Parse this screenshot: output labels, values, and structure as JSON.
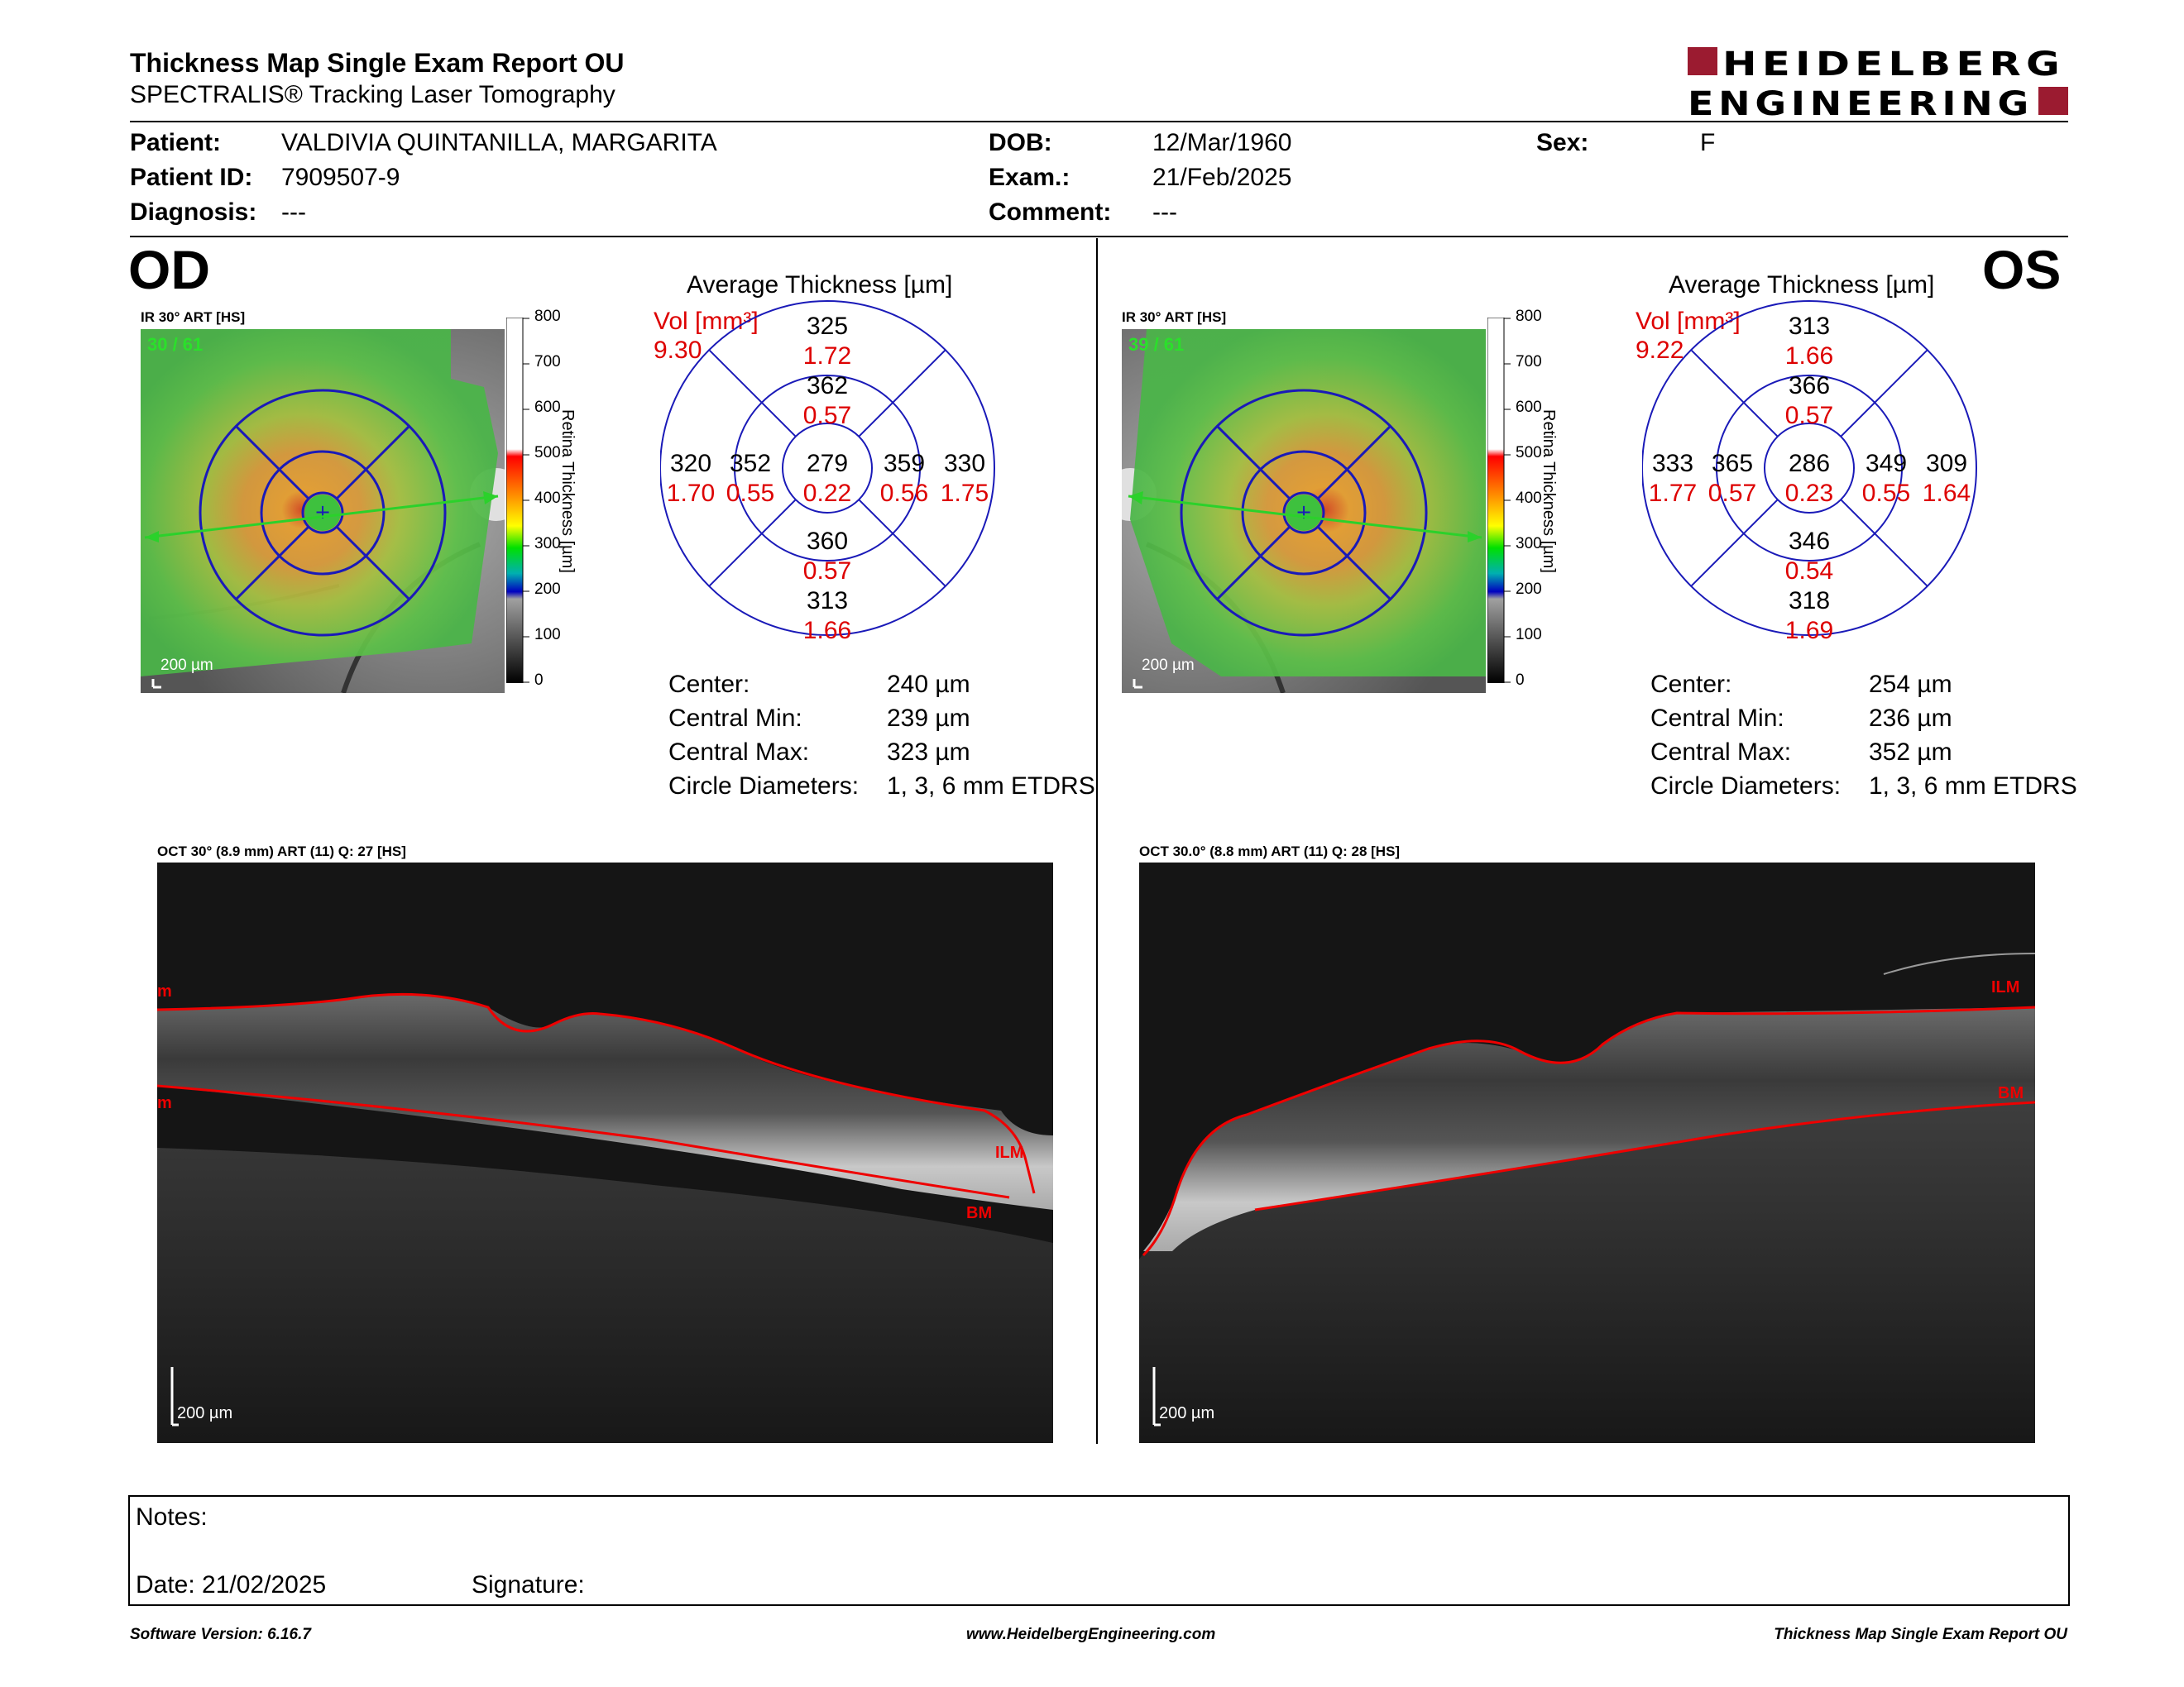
{
  "report": {
    "title": "Thickness Map Single Exam Report OU",
    "subtitle": "SPECTRALIS® Tracking Laser Tomography",
    "logo_line1": "HEIDELBERG",
    "logo_line2": "ENGINEERING",
    "brand_color": "#9b1b30"
  },
  "patient": {
    "patient_label": "Patient:",
    "patient_value": "VALDIVIA QUINTANILLA, MARGARITA",
    "id_label": "Patient ID:",
    "id_value": "7909507-9",
    "diag_label": "Diagnosis:",
    "diag_value": "---",
    "dob_label": "DOB:",
    "dob_value": "12/Mar/1960",
    "exam_label": "Exam.:",
    "exam_value": "21/Feb/2025",
    "comment_label": "Comment:",
    "comment_value": "---",
    "sex_label": "Sex:",
    "sex_value": "F"
  },
  "od": {
    "eye_label": "OD",
    "ir_label": "IR 30° ART [HS]",
    "frames": "30 / 61",
    "scale_bar": "200 µm",
    "avg_title": "Average Thickness [µm]",
    "vol_label": "Vol [mm³]",
    "vol_total": "9.30",
    "sectors": {
      "outer_top": [
        "325",
        "1.72"
      ],
      "inner_top": [
        "362",
        "0.57"
      ],
      "outer_left": [
        "320",
        "1.70"
      ],
      "inner_left": [
        "352",
        "0.55"
      ],
      "center": [
        "279",
        "0.22"
      ],
      "inner_right": [
        "359",
        "0.56"
      ],
      "outer_right": [
        "330",
        "1.75"
      ],
      "inner_bottom": [
        "360",
        "0.57"
      ],
      "outer_bottom": [
        "313",
        "1.66"
      ]
    },
    "stats": {
      "center_label": "Center:",
      "center_value": "240 µm",
      "min_label": "Central Min:",
      "min_value": "239 µm",
      "max_label": "Central Max:",
      "max_value": "323 µm",
      "diam_label": "Circle Diameters:",
      "diam_value": "1, 3, 6 mm ETDRS"
    },
    "oct_label": "OCT 30° (8.9 mm) ART (11) Q: 27 [HS]",
    "oct_scale": "200 µm",
    "layer_ilm": "ILM",
    "layer_bm": "BM",
    "layer_cut": "m"
  },
  "os": {
    "eye_label": "OS",
    "ir_label": "IR 30° ART [HS]",
    "frames": "39 / 61",
    "scale_bar": "200 µm",
    "avg_title": "Average Thickness [µm]",
    "vol_label": "Vol [mm³]",
    "vol_total": "9.22",
    "sectors": {
      "outer_top": [
        "313",
        "1.66"
      ],
      "inner_top": [
        "366",
        "0.57"
      ],
      "outer_left": [
        "333",
        "1.77"
      ],
      "inner_left": [
        "365",
        "0.57"
      ],
      "center": [
        "286",
        "0.23"
      ],
      "inner_right": [
        "349",
        "0.55"
      ],
      "outer_right": [
        "309",
        "1.64"
      ],
      "inner_bottom": [
        "346",
        "0.54"
      ],
      "outer_bottom": [
        "318",
        "1.69"
      ]
    },
    "stats": {
      "center_label": "Center:",
      "center_value": "254 µm",
      "min_label": "Central Min:",
      "min_value": "236 µm",
      "max_label": "Central Max:",
      "max_value": "352 µm",
      "diam_label": "Circle Diameters:",
      "diam_value": "1, 3, 6 mm ETDRS"
    },
    "oct_label": "OCT 30.0° (8.8 mm) ART (11) Q: 28 [HS]",
    "oct_scale": "200 µm",
    "layer_ilm": "ILM",
    "layer_bm": "BM"
  },
  "colorbar": {
    "ticks": [
      "800",
      "700",
      "600",
      "500",
      "400",
      "300",
      "200",
      "100",
      "0"
    ],
    "axis_title": "Retina Thickness [µm]"
  },
  "notes": {
    "notes_label": "Notes:",
    "date_label": "Date: 21/02/2025",
    "signature_label": "Signature:"
  },
  "footer": {
    "software": "Software Version: 6.16.7",
    "website": "www.HeidelbergEngineering.com",
    "report_name": "Thickness Map Single Exam Report OU"
  }
}
